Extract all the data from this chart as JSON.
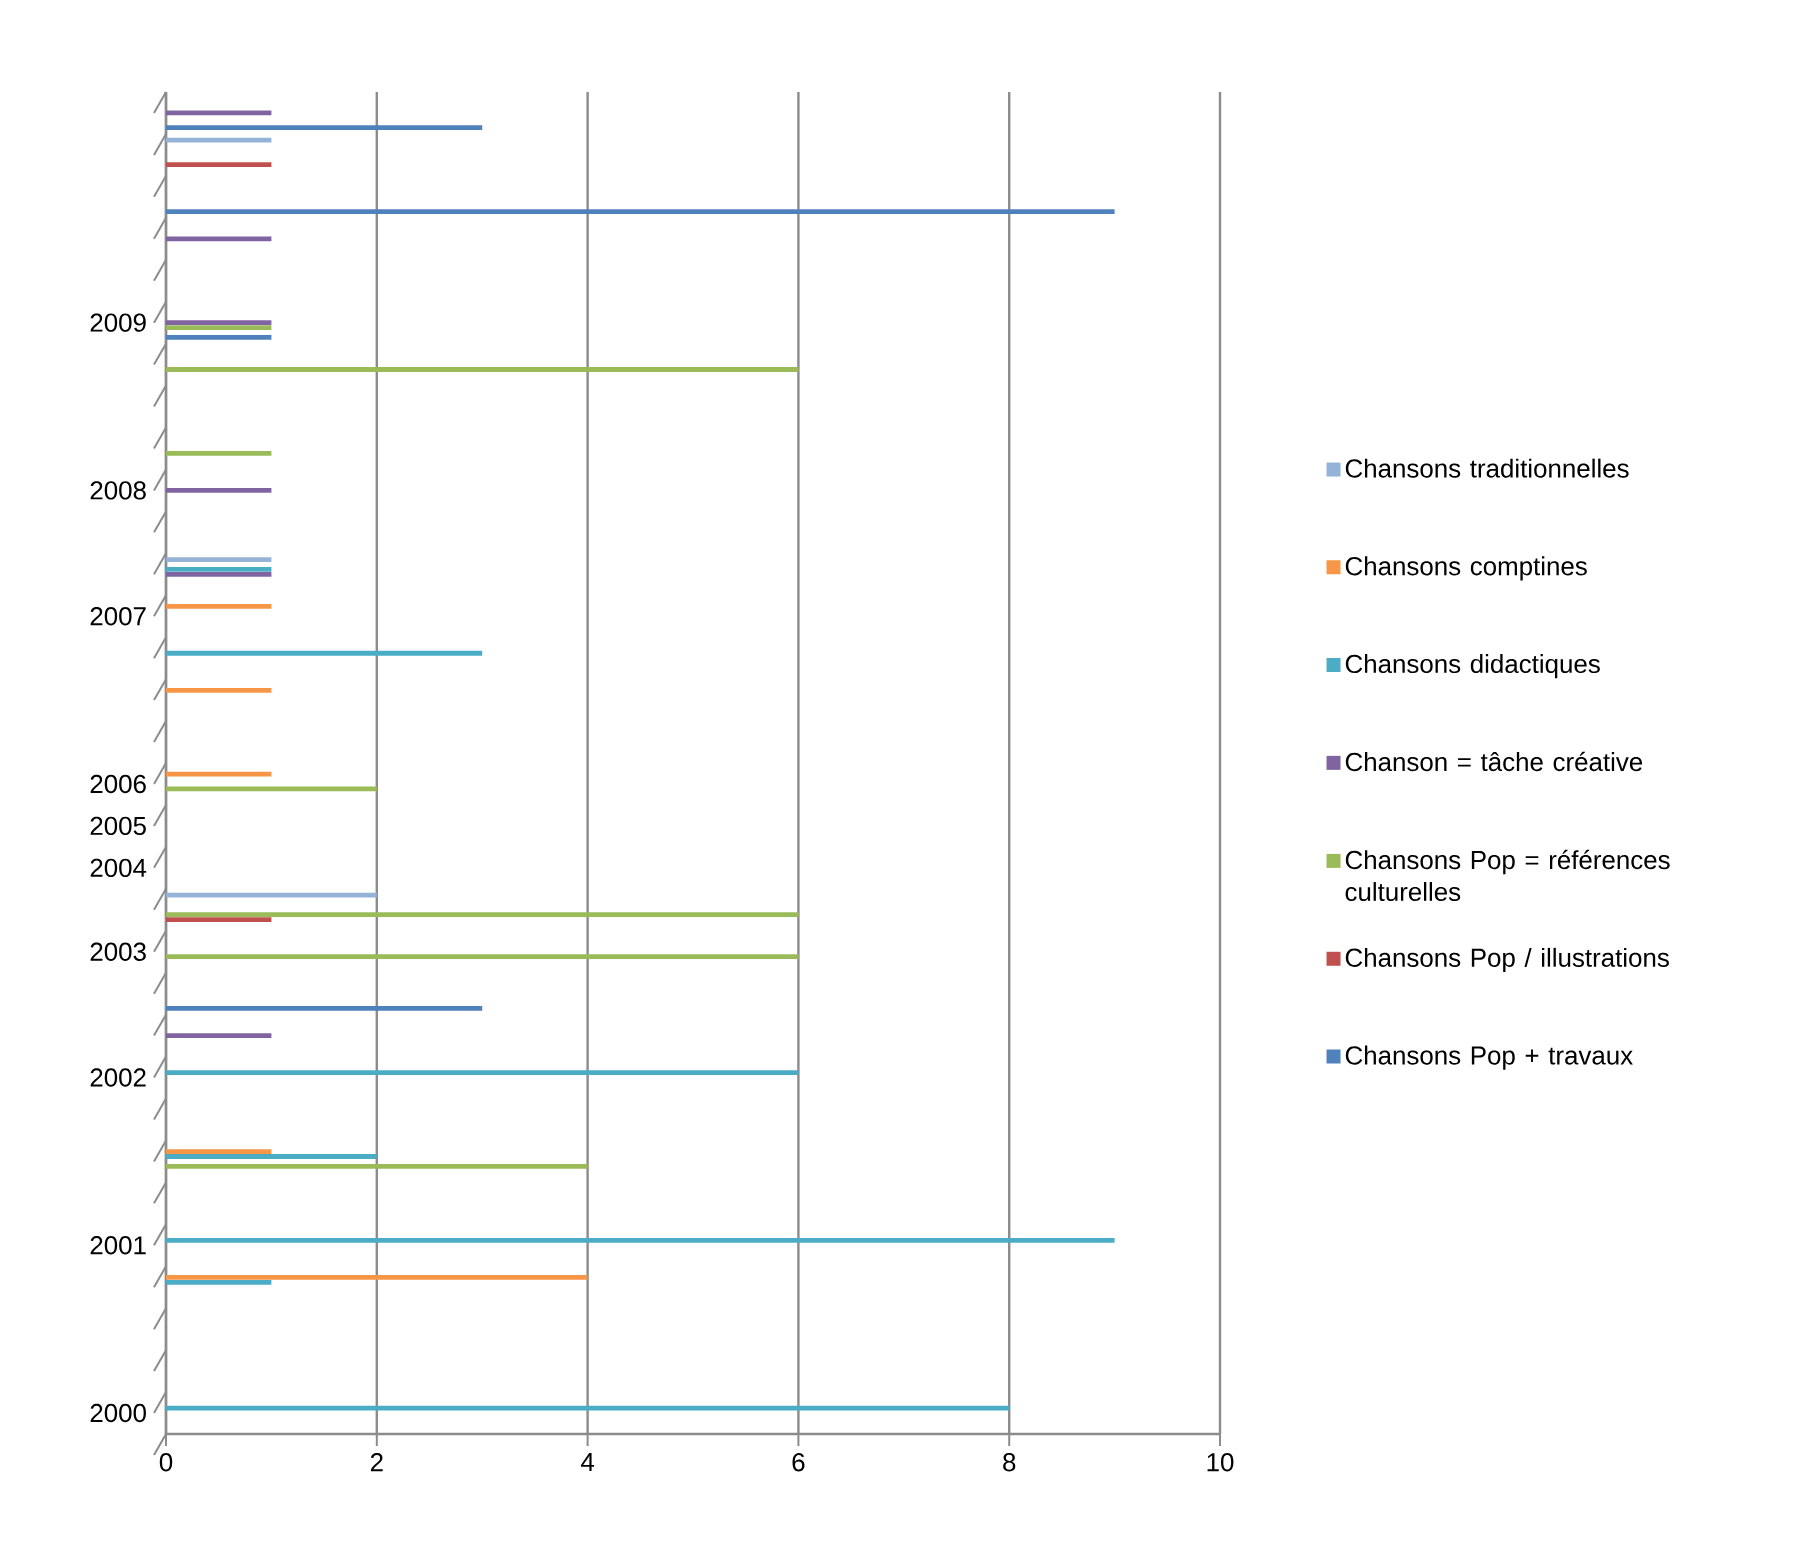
{
  "chart_data": {
    "type": "bar",
    "orientation": "horizontal",
    "categories": [
      null,
      null,
      null,
      null,
      null,
      "2009",
      null,
      null,
      null,
      "2008",
      null,
      null,
      "2007",
      null,
      null,
      null,
      "2006",
      "2005",
      "2004",
      null,
      "2003",
      null,
      null,
      "2002",
      null,
      null,
      null,
      "2001",
      null,
      null,
      null,
      "2000"
    ],
    "series": [
      {
        "name": "Chansons traditionnelles",
        "color": "#95b3d7",
        "values": [
          null,
          1,
          null,
          null,
          null,
          null,
          null,
          null,
          null,
          null,
          null,
          1,
          null,
          null,
          null,
          null,
          null,
          null,
          null,
          2,
          null,
          null,
          null,
          null,
          null,
          null,
          null,
          null,
          null,
          null,
          null,
          null
        ]
      },
      {
        "name": "Chansons comptines",
        "color": "#f79646",
        "values": [
          null,
          null,
          null,
          null,
          null,
          null,
          null,
          null,
          null,
          null,
          null,
          null,
          1,
          null,
          1,
          null,
          1,
          null,
          null,
          null,
          null,
          null,
          null,
          null,
          null,
          1,
          null,
          null,
          4,
          null,
          null,
          null
        ]
      },
      {
        "name": "Chansons didactiques",
        "color": "#4bacc6",
        "values": [
          null,
          null,
          null,
          null,
          null,
          null,
          null,
          null,
          null,
          null,
          null,
          1,
          null,
          3,
          null,
          null,
          null,
          null,
          null,
          null,
          null,
          null,
          null,
          6,
          null,
          2,
          null,
          9,
          1,
          null,
          null,
          8
        ]
      },
      {
        "name": "Chanson = tâche créative",
        "color": "#8064a2",
        "values": [
          1,
          null,
          null,
          1,
          null,
          1,
          null,
          null,
          null,
          1,
          null,
          1,
          null,
          null,
          null,
          null,
          null,
          null,
          null,
          null,
          null,
          null,
          1,
          null,
          null,
          null,
          null,
          null,
          null,
          null,
          null,
          null
        ]
      },
      {
        "name": "Chansons Pop = références culturelles",
        "color": "#9bbb59",
        "values": [
          null,
          null,
          null,
          null,
          null,
          1,
          6,
          null,
          1,
          null,
          null,
          null,
          null,
          null,
          null,
          null,
          2,
          null,
          null,
          6,
          6,
          null,
          null,
          null,
          null,
          4,
          null,
          null,
          null,
          null,
          null,
          null
        ]
      },
      {
        "name": "Chansons Pop / illustrations",
        "color": "#c0504d",
        "values": [
          null,
          1,
          null,
          null,
          null,
          null,
          null,
          null,
          null,
          null,
          null,
          null,
          null,
          null,
          null,
          null,
          null,
          null,
          null,
          1,
          null,
          null,
          null,
          null,
          null,
          null,
          null,
          null,
          null,
          null,
          null,
          null
        ]
      },
      {
        "name": "Chansons Pop + travaux",
        "color": "#4f81bd",
        "values": [
          3,
          null,
          9,
          null,
          null,
          1,
          null,
          null,
          null,
          null,
          null,
          null,
          null,
          null,
          null,
          null,
          null,
          null,
          null,
          null,
          null,
          3,
          null,
          null,
          null,
          null,
          null,
          null,
          null,
          null,
          null,
          null
        ]
      }
    ],
    "xlim": [
      0,
      10
    ],
    "xticks": [
      0,
      2,
      4,
      6,
      8,
      10
    ],
    "grid": "x",
    "legend": "right"
  }
}
